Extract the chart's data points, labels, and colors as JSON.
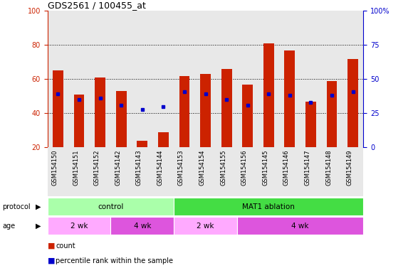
{
  "title": "GDS2561 / 100455_at",
  "samples": [
    "GSM154150",
    "GSM154151",
    "GSM154152",
    "GSM154142",
    "GSM154143",
    "GSM154144",
    "GSM154153",
    "GSM154154",
    "GSM154155",
    "GSM154156",
    "GSM154145",
    "GSM154146",
    "GSM154147",
    "GSM154148",
    "GSM154149"
  ],
  "counts": [
    65,
    51,
    61,
    53,
    24,
    29,
    62,
    63,
    66,
    57,
    81,
    77,
    47,
    59,
    72
  ],
  "percentile_ranks": [
    39,
    35,
    36,
    31,
    28,
    30,
    41,
    39,
    35,
    31,
    39,
    38,
    33,
    38,
    41
  ],
  "ylim_left": [
    20,
    100
  ],
  "ylim_right": [
    0,
    100
  ],
  "yticks_left": [
    20,
    40,
    60,
    80,
    100
  ],
  "yticks_right": [
    0,
    25,
    50,
    75,
    100
  ],
  "ytick_labels_right": [
    "0",
    "25",
    "50",
    "75",
    "100%"
  ],
  "grid_lines": [
    40,
    60,
    80
  ],
  "bar_color": "#cc2200",
  "dot_color": "#0000cc",
  "bar_width": 0.5,
  "protocol_groups": [
    {
      "label": "control",
      "start": 0,
      "end": 6,
      "color": "#aaffaa"
    },
    {
      "label": "MAT1 ablation",
      "start": 6,
      "end": 15,
      "color": "#44dd44"
    }
  ],
  "age_groups": [
    {
      "label": "2 wk",
      "start": 0,
      "end": 3,
      "color": "#ffaaff"
    },
    {
      "label": "4 wk",
      "start": 3,
      "end": 6,
      "color": "#dd55dd"
    },
    {
      "label": "2 wk",
      "start": 6,
      "end": 9,
      "color": "#ffaaff"
    },
    {
      "label": "4 wk",
      "start": 9,
      "end": 15,
      "color": "#dd55dd"
    }
  ],
  "tick_label_color_left": "#cc2200",
  "tick_label_color_right": "#0000cc",
  "plot_bg_color": "#e8e8e8",
  "title_fontsize": 9,
  "tick_fontsize": 7,
  "bar_label_fontsize": 6
}
